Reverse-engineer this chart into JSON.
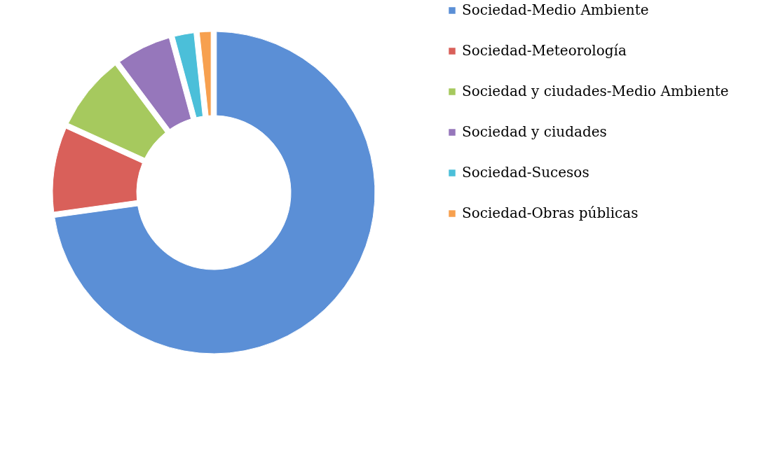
{
  "chart_data": {
    "type": "donut",
    "categories": [
      "Sociedad-Medio Ambiente",
      "Sociedad-Meteorología",
      "Sociedad y ciudades-Medio Ambiente",
      "Sociedad y ciudades",
      "Sociedad-Sucesos",
      "Sociedad-Obras públicas"
    ],
    "values": [
      72.8,
      9,
      8,
      6,
      2.5,
      1.7
    ],
    "colors": [
      "#5b8fd6",
      "#d9605a",
      "#a6c95e",
      "#9677bb",
      "#4bbfd9",
      "#f7a04f"
    ],
    "legend": "right"
  }
}
